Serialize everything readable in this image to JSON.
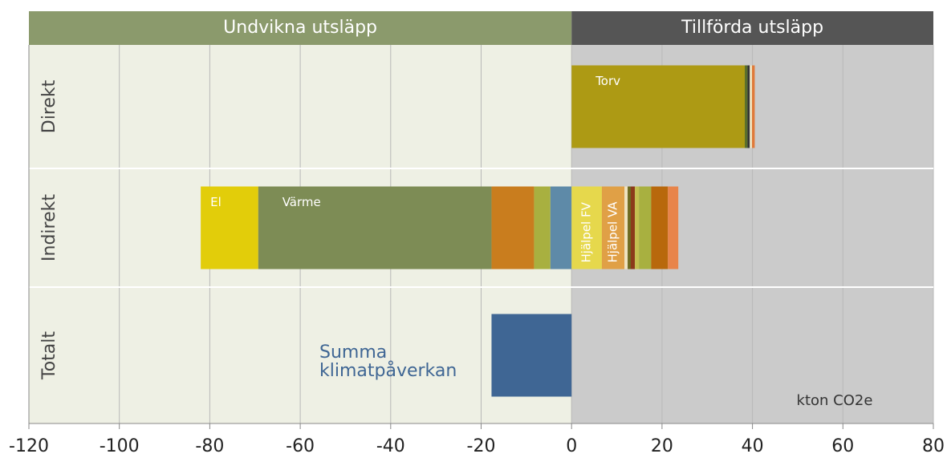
{
  "chart_data": {
    "type": "bar",
    "orientation": "horizontal",
    "sections": [
      {
        "label": "Undvikna utsläpp",
        "color": "#8b9a6c",
        "background": "#eef0e4"
      },
      {
        "label": "Tillförda utsläpp",
        "color": "#555555",
        "background": "#cbcbcb"
      }
    ],
    "categories": [
      "Direkt",
      "Indirekt",
      "Totalt"
    ],
    "rows": [
      {
        "negative": [],
        "positive": [
          {
            "name": "Torv",
            "color": "#ad9a14",
            "value": 38.3
          },
          {
            "color": "#5a6e2a",
            "value": 0.6
          },
          {
            "color": "#333333",
            "value": 0.5
          },
          {
            "color": "#efe3c0",
            "value": 0.5
          },
          {
            "color": "#e07a3a",
            "value": 0.6
          }
        ]
      },
      {
        "negative": [
          {
            "color": "#5e8aa8",
            "value": -4.7
          },
          {
            "color": "#a8b040",
            "value": -3.6
          },
          {
            "color": "#c97d1e",
            "value": -9.4
          },
          {
            "name": "Värme",
            "color": "#7d8c55",
            "value": -51.6
          },
          {
            "name": "El",
            "color": "#e2cd0a",
            "value": -12.7
          }
        ],
        "positive": [
          {
            "name": "Hjälpel FV",
            "color": "#e6d84c",
            "value": 6.7
          },
          {
            "name": "Hjälpel VA",
            "color": "#e0a046",
            "value": 5.0
          },
          {
            "color": "#efe3c0",
            "value": 0.7
          },
          {
            "color": "#6e6a20",
            "value": 0.7
          },
          {
            "color": "#8b3a1a",
            "value": 0.9
          },
          {
            "color": "#c4c050",
            "value": 0.9
          },
          {
            "color": "#a8b040",
            "value": 2.7
          },
          {
            "color": "#b8680c",
            "value": 3.7
          },
          {
            "color": "#e8844a",
            "value": 2.3
          }
        ]
      },
      {
        "negative": [
          {
            "color": "#3f6694",
            "value": -17.7
          }
        ],
        "positive": []
      }
    ],
    "annotation": [
      "Summa",
      "klimatpåverkan"
    ],
    "unit_label": "kton CO2e",
    "xlim": [
      -120,
      80
    ],
    "xticks": [
      -120,
      -100,
      -80,
      -60,
      -40,
      -20,
      0,
      20,
      40,
      60,
      80
    ],
    "grid": true
  }
}
